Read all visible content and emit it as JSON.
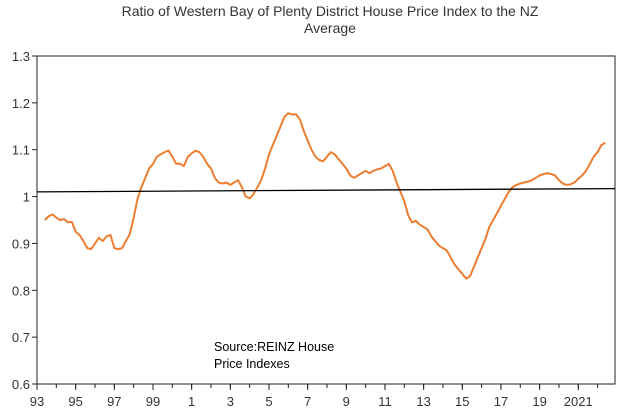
{
  "chart_data": {
    "type": "line",
    "title_line1": "Ratio of Western Bay of Plenty District House Price Index to the NZ",
    "title_line2": "Average",
    "xlabel": "",
    "ylabel": "",
    "ylim": [
      0.6,
      1.3
    ],
    "y_ticks": [
      0.6,
      0.7,
      0.8,
      0.9,
      1.0,
      1.1,
      1.2,
      1.3
    ],
    "y_tick_labels": [
      "0.6",
      "0.7",
      "0.8",
      "0.9",
      "1",
      "1.1",
      "1.2",
      "1.3"
    ],
    "xlim": [
      1993,
      2022.9
    ],
    "x_ticks": [
      1993,
      1995,
      1997,
      1999,
      2001,
      2003,
      2005,
      2007,
      2009,
      2011,
      2013,
      2015,
      2017,
      2019,
      2021
    ],
    "x_tick_labels": [
      "93",
      "95",
      "97",
      "99",
      "1",
      "3",
      "5",
      "7",
      "9",
      "11",
      "13",
      "15",
      "17",
      "19",
      "2021"
    ],
    "annotation_line1": "Source:REINZ House",
    "annotation_line2": "Price Indexes",
    "grid": false,
    "series": [
      {
        "color": "#ED7D31",
        "points": [
          [
            1993.4,
            0.95
          ],
          [
            1993.6,
            0.958
          ],
          [
            1993.8,
            0.962
          ],
          [
            1994.0,
            0.955
          ],
          [
            1994.2,
            0.95
          ],
          [
            1994.4,
            0.952
          ],
          [
            1994.6,
            0.945
          ],
          [
            1994.8,
            0.946
          ],
          [
            1995.0,
            0.925
          ],
          [
            1995.2,
            0.918
          ],
          [
            1995.4,
            0.905
          ],
          [
            1995.6,
            0.89
          ],
          [
            1995.8,
            0.888
          ],
          [
            1996.0,
            0.9
          ],
          [
            1996.2,
            0.912
          ],
          [
            1996.4,
            0.905
          ],
          [
            1996.6,
            0.915
          ],
          [
            1996.8,
            0.918
          ],
          [
            1997.0,
            0.89
          ],
          [
            1997.2,
            0.888
          ],
          [
            1997.4,
            0.89
          ],
          [
            1997.6,
            0.905
          ],
          [
            1997.8,
            0.92
          ],
          [
            1998.0,
            0.955
          ],
          [
            1998.2,
            0.995
          ],
          [
            1998.4,
            1.02
          ],
          [
            1998.6,
            1.04
          ],
          [
            1998.8,
            1.06
          ],
          [
            1999.0,
            1.07
          ],
          [
            1999.2,
            1.085
          ],
          [
            1999.4,
            1.09
          ],
          [
            1999.6,
            1.095
          ],
          [
            1999.8,
            1.098
          ],
          [
            2000.0,
            1.085
          ],
          [
            2000.2,
            1.07
          ],
          [
            2000.4,
            1.07
          ],
          [
            2000.6,
            1.065
          ],
          [
            2000.8,
            1.085
          ],
          [
            2001.0,
            1.092
          ],
          [
            2001.2,
            1.098
          ],
          [
            2001.4,
            1.095
          ],
          [
            2001.6,
            1.085
          ],
          [
            2001.8,
            1.07
          ],
          [
            2002.0,
            1.06
          ],
          [
            2002.2,
            1.04
          ],
          [
            2002.4,
            1.03
          ],
          [
            2002.6,
            1.028
          ],
          [
            2002.8,
            1.03
          ],
          [
            2003.0,
            1.025
          ],
          [
            2003.2,
            1.03
          ],
          [
            2003.4,
            1.035
          ],
          [
            2003.6,
            1.02
          ],
          [
            2003.8,
            1.0
          ],
          [
            2004.0,
            0.996
          ],
          [
            2004.2,
            1.005
          ],
          [
            2004.4,
            1.02
          ],
          [
            2004.6,
            1.035
          ],
          [
            2004.8,
            1.06
          ],
          [
            2005.0,
            1.09
          ],
          [
            2005.2,
            1.11
          ],
          [
            2005.4,
            1.13
          ],
          [
            2005.6,
            1.15
          ],
          [
            2005.8,
            1.17
          ],
          [
            2006.0,
            1.178
          ],
          [
            2006.2,
            1.175
          ],
          [
            2006.4,
            1.176
          ],
          [
            2006.6,
            1.165
          ],
          [
            2006.8,
            1.14
          ],
          [
            2007.0,
            1.12
          ],
          [
            2007.2,
            1.1
          ],
          [
            2007.4,
            1.085
          ],
          [
            2007.6,
            1.078
          ],
          [
            2007.8,
            1.075
          ],
          [
            2008.0,
            1.085
          ],
          [
            2008.2,
            1.095
          ],
          [
            2008.4,
            1.09
          ],
          [
            2008.6,
            1.08
          ],
          [
            2008.8,
            1.07
          ],
          [
            2009.0,
            1.06
          ],
          [
            2009.2,
            1.045
          ],
          [
            2009.4,
            1.04
          ],
          [
            2009.6,
            1.045
          ],
          [
            2009.8,
            1.05
          ],
          [
            2010.0,
            1.055
          ],
          [
            2010.2,
            1.05
          ],
          [
            2010.4,
            1.055
          ],
          [
            2010.6,
            1.058
          ],
          [
            2010.8,
            1.06
          ],
          [
            2011.0,
            1.065
          ],
          [
            2011.2,
            1.07
          ],
          [
            2011.4,
            1.055
          ],
          [
            2011.6,
            1.03
          ],
          [
            2011.8,
            1.01
          ],
          [
            2012.0,
            0.99
          ],
          [
            2012.2,
            0.96
          ],
          [
            2012.4,
            0.945
          ],
          [
            2012.6,
            0.948
          ],
          [
            2012.8,
            0.94
          ],
          [
            2013.0,
            0.935
          ],
          [
            2013.2,
            0.93
          ],
          [
            2013.4,
            0.915
          ],
          [
            2013.6,
            0.905
          ],
          [
            2013.8,
            0.895
          ],
          [
            2014.0,
            0.89
          ],
          [
            2014.2,
            0.885
          ],
          [
            2014.4,
            0.87
          ],
          [
            2014.6,
            0.855
          ],
          [
            2014.8,
            0.845
          ],
          [
            2015.0,
            0.835
          ],
          [
            2015.2,
            0.825
          ],
          [
            2015.4,
            0.83
          ],
          [
            2015.6,
            0.85
          ],
          [
            2015.8,
            0.87
          ],
          [
            2016.0,
            0.89
          ],
          [
            2016.2,
            0.91
          ],
          [
            2016.4,
            0.935
          ],
          [
            2016.6,
            0.95
          ],
          [
            2016.8,
            0.965
          ],
          [
            2017.0,
            0.98
          ],
          [
            2017.2,
            0.995
          ],
          [
            2017.4,
            1.01
          ],
          [
            2017.6,
            1.02
          ],
          [
            2017.8,
            1.025
          ],
          [
            2018.0,
            1.028
          ],
          [
            2018.2,
            1.03
          ],
          [
            2018.4,
            1.032
          ],
          [
            2018.6,
            1.035
          ],
          [
            2018.8,
            1.04
          ],
          [
            2019.0,
            1.045
          ],
          [
            2019.2,
            1.048
          ],
          [
            2019.4,
            1.05
          ],
          [
            2019.6,
            1.048
          ],
          [
            2019.8,
            1.045
          ],
          [
            2020.0,
            1.035
          ],
          [
            2020.2,
            1.028
          ],
          [
            2020.4,
            1.025
          ],
          [
            2020.6,
            1.026
          ],
          [
            2020.8,
            1.03
          ],
          [
            2021.0,
            1.038
          ],
          [
            2021.2,
            1.045
          ],
          [
            2021.4,
            1.055
          ],
          [
            2021.6,
            1.07
          ],
          [
            2021.8,
            1.085
          ],
          [
            2022.0,
            1.095
          ],
          [
            2022.2,
            1.11
          ],
          [
            2022.4,
            1.115
          ]
        ]
      },
      {
        "color": "#000000",
        "points": [
          [
            1993.0,
            1.01
          ],
          [
            2022.9,
            1.017
          ]
        ]
      }
    ]
  }
}
